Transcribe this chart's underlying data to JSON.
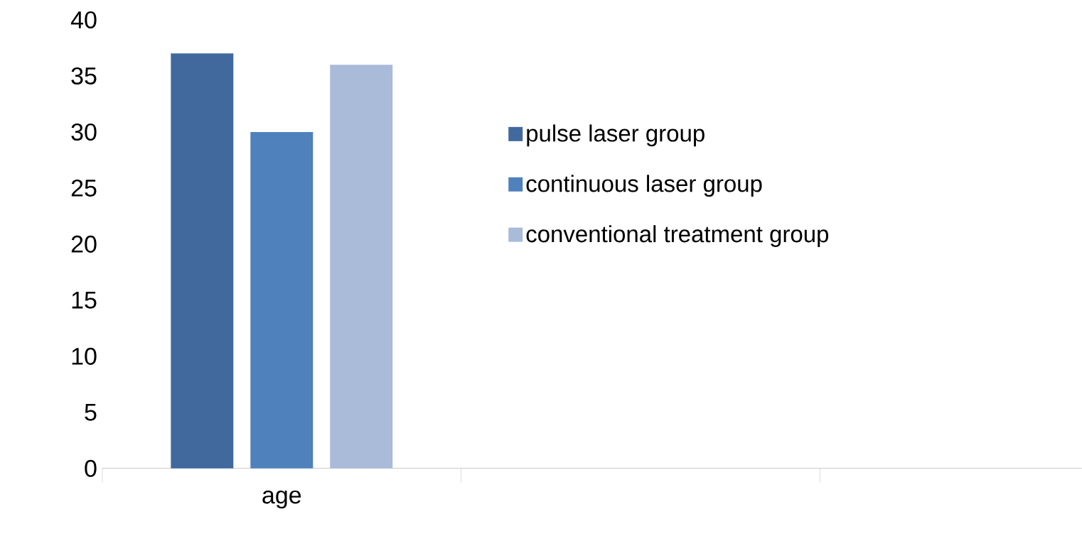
{
  "chart_data": {
    "type": "bar",
    "categories": [
      "age",
      null,
      null
    ],
    "series": [
      {
        "name": "pulse laser group",
        "color": "#41699e",
        "values": [
          37,
          null,
          null
        ]
      },
      {
        "name": "continuous laser group",
        "color": "#4f81bd",
        "values": [
          30,
          null,
          null
        ]
      },
      {
        "name": "conventional treatment group",
        "color": "#a9bbd9",
        "values": [
          36,
          null,
          null
        ]
      }
    ],
    "ylim": [
      0,
      40
    ],
    "yticks": [
      0,
      5,
      10,
      15,
      20,
      25,
      30,
      35,
      40
    ],
    "legend": "right",
    "grid": false
  }
}
